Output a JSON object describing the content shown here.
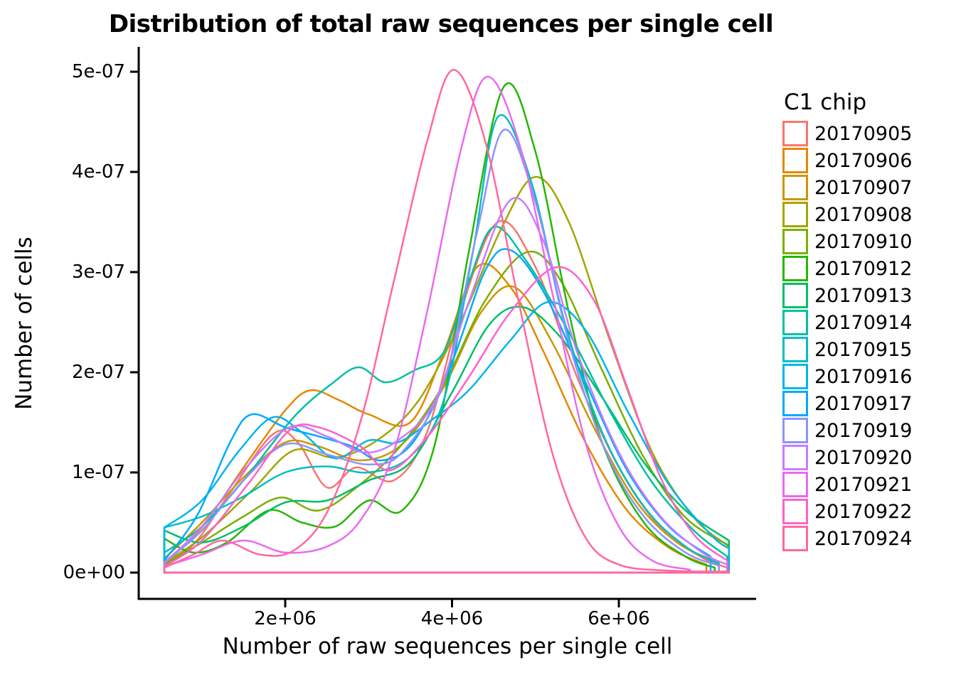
{
  "chart_data": {
    "type": "line",
    "subtype": "kernel-density",
    "title": "Distribution of total raw sequences per single cell",
    "xlabel": "Number of raw sequences per single cell",
    "ylabel": "Number of cells",
    "xlim": [
      250000,
      7650000
    ],
    "ylim": [
      0,
      5.2e-07
    ],
    "grid": false,
    "x_unit": 1000000,
    "y_unit": 1e-07,
    "x_ticks": [
      {
        "value": 2,
        "label": "2e+06"
      },
      {
        "value": 4,
        "label": "4e+06"
      },
      {
        "value": 6,
        "label": "6e+06"
      }
    ],
    "y_ticks": [
      {
        "value": 0,
        "label": "0e+00"
      },
      {
        "value": 1,
        "label": "1e-07"
      },
      {
        "value": 2,
        "label": "2e-07"
      },
      {
        "value": 3,
        "label": "3e-07"
      },
      {
        "value": 4,
        "label": "4e-07"
      },
      {
        "value": 5,
        "label": "5e-07"
      }
    ],
    "legend": {
      "title": "C1 chip",
      "position": "right"
    },
    "series": [
      {
        "name": "20170905",
        "color": "#F8766D",
        "points": [
          [
            0.55,
            0.1
          ],
          [
            0.9,
            0.28
          ],
          [
            1.3,
            0.75
          ],
          [
            1.85,
            1.38
          ],
          [
            2.15,
            1.3
          ],
          [
            2.5,
            0.85
          ],
          [
            2.85,
            1.05
          ],
          [
            3.3,
            0.92
          ],
          [
            3.7,
            1.4
          ],
          [
            4.1,
            2.6
          ],
          [
            4.55,
            3.5
          ],
          [
            5.0,
            3.05
          ],
          [
            5.5,
            1.95
          ],
          [
            6.0,
            1.05
          ],
          [
            6.5,
            0.45
          ],
          [
            7.0,
            0.15
          ],
          [
            7.3,
            0.05
          ]
        ]
      },
      {
        "name": "20170906",
        "color": "#E38900",
        "points": [
          [
            0.55,
            0.1
          ],
          [
            1.0,
            0.45
          ],
          [
            1.5,
            1.05
          ],
          [
            2.0,
            1.62
          ],
          [
            2.3,
            1.82
          ],
          [
            2.65,
            1.72
          ],
          [
            3.0,
            1.58
          ],
          [
            3.5,
            1.5
          ],
          [
            3.9,
            2.2
          ],
          [
            4.3,
            3.05
          ],
          [
            4.7,
            2.85
          ],
          [
            5.1,
            2.2
          ],
          [
            5.6,
            1.3
          ],
          [
            6.1,
            0.62
          ],
          [
            6.6,
            0.25
          ],
          [
            7.05,
            0.08
          ]
        ]
      },
      {
        "name": "20170907",
        "color": "#CD9600",
        "points": [
          [
            0.55,
            0.14
          ],
          [
            1.0,
            0.5
          ],
          [
            1.5,
            0.95
          ],
          [
            2.0,
            1.3
          ],
          [
            2.4,
            1.26
          ],
          [
            2.9,
            1.12
          ],
          [
            3.4,
            1.28
          ],
          [
            3.9,
            1.85
          ],
          [
            4.35,
            2.6
          ],
          [
            4.75,
            2.85
          ],
          [
            5.2,
            2.3
          ],
          [
            5.7,
            1.45
          ],
          [
            6.2,
            0.72
          ],
          [
            6.7,
            0.3
          ],
          [
            7.2,
            0.1
          ]
        ]
      },
      {
        "name": "20170908",
        "color": "#A3A500",
        "points": [
          [
            0.55,
            0.1
          ],
          [
            1.0,
            0.35
          ],
          [
            1.6,
            0.82
          ],
          [
            2.1,
            1.22
          ],
          [
            2.6,
            1.15
          ],
          [
            3.1,
            1.32
          ],
          [
            3.6,
            1.72
          ],
          [
            4.1,
            2.5
          ],
          [
            4.6,
            3.45
          ],
          [
            5.0,
            3.95
          ],
          [
            5.4,
            3.5
          ],
          [
            5.9,
            2.3
          ],
          [
            6.4,
            1.2
          ],
          [
            6.9,
            0.55
          ],
          [
            7.32,
            0.26
          ]
        ]
      },
      {
        "name": "20170910",
        "color": "#7CAE00",
        "points": [
          [
            0.55,
            0.08
          ],
          [
            1.0,
            0.3
          ],
          [
            1.5,
            0.56
          ],
          [
            1.95,
            0.75
          ],
          [
            2.4,
            0.62
          ],
          [
            2.9,
            0.88
          ],
          [
            3.4,
            1.28
          ],
          [
            3.9,
            1.88
          ],
          [
            4.4,
            2.72
          ],
          [
            4.9,
            3.2
          ],
          [
            5.3,
            2.92
          ],
          [
            5.8,
            2.02
          ],
          [
            6.3,
            1.15
          ],
          [
            6.8,
            0.55
          ],
          [
            7.32,
            0.27
          ]
        ]
      },
      {
        "name": "20170912",
        "color": "#24B700",
        "points": [
          [
            0.55,
            0.34
          ],
          [
            0.9,
            0.2
          ],
          [
            1.3,
            0.3
          ],
          [
            1.8,
            0.62
          ],
          [
            2.2,
            0.5
          ],
          [
            2.6,
            0.46
          ],
          [
            3.0,
            0.72
          ],
          [
            3.4,
            0.62
          ],
          [
            3.8,
            1.3
          ],
          [
            4.2,
            3.2
          ],
          [
            4.62,
            4.85
          ],
          [
            5.0,
            4.2
          ],
          [
            5.4,
            2.6
          ],
          [
            5.8,
            1.3
          ],
          [
            6.3,
            0.5
          ],
          [
            6.8,
            0.16
          ],
          [
            7.15,
            0.05
          ]
        ]
      },
      {
        "name": "20170913",
        "color": "#00BE67",
        "points": [
          [
            0.55,
            0.42
          ],
          [
            1.0,
            0.3
          ],
          [
            1.5,
            0.46
          ],
          [
            2.0,
            0.7
          ],
          [
            2.5,
            0.72
          ],
          [
            3.0,
            0.92
          ],
          [
            3.5,
            1.1
          ],
          [
            4.0,
            1.8
          ],
          [
            4.45,
            2.48
          ],
          [
            4.85,
            2.65
          ],
          [
            5.3,
            2.35
          ],
          [
            5.8,
            1.75
          ],
          [
            6.3,
            1.1
          ],
          [
            6.8,
            0.62
          ],
          [
            7.32,
            0.32
          ]
        ]
      },
      {
        "name": "20170914",
        "color": "#00C0A2",
        "points": [
          [
            0.55,
            0.2
          ],
          [
            1.0,
            0.46
          ],
          [
            1.5,
            0.92
          ],
          [
            2.1,
            1.55
          ],
          [
            2.55,
            1.88
          ],
          [
            2.88,
            2.05
          ],
          [
            3.2,
            1.9
          ],
          [
            3.55,
            2.02
          ],
          [
            3.9,
            2.2
          ],
          [
            4.2,
            2.9
          ],
          [
            4.5,
            3.45
          ],
          [
            4.9,
            3.1
          ],
          [
            5.4,
            2.4
          ],
          [
            5.9,
            1.6
          ],
          [
            6.4,
            0.9
          ],
          [
            6.9,
            0.42
          ],
          [
            7.3,
            0.16
          ]
        ]
      },
      {
        "name": "20170915",
        "color": "#00BFC4",
        "points": [
          [
            0.55,
            0.45
          ],
          [
            1.0,
            0.56
          ],
          [
            1.5,
            0.76
          ],
          [
            2.0,
            1.0
          ],
          [
            2.5,
            1.06
          ],
          [
            3.0,
            1.0
          ],
          [
            3.5,
            1.16
          ],
          [
            3.9,
            1.72
          ],
          [
            4.25,
            3.2
          ],
          [
            4.55,
            4.55
          ],
          [
            4.95,
            3.9
          ],
          [
            5.35,
            2.5
          ],
          [
            5.8,
            1.4
          ],
          [
            6.3,
            0.66
          ],
          [
            6.8,
            0.26
          ],
          [
            7.2,
            0.09
          ]
        ]
      },
      {
        "name": "20170916",
        "color": "#00B5EC",
        "points": [
          [
            0.55,
            0.45
          ],
          [
            1.0,
            0.72
          ],
          [
            1.45,
            1.22
          ],
          [
            1.85,
            1.55
          ],
          [
            2.2,
            1.4
          ],
          [
            2.6,
            1.14
          ],
          [
            3.0,
            1.32
          ],
          [
            3.35,
            1.3
          ],
          [
            3.75,
            1.52
          ],
          [
            4.2,
            1.82
          ],
          [
            4.7,
            2.32
          ],
          [
            5.15,
            2.7
          ],
          [
            5.6,
            2.42
          ],
          [
            6.1,
            1.62
          ],
          [
            6.6,
            0.88
          ],
          [
            7.1,
            0.38
          ],
          [
            7.32,
            0.24
          ]
        ]
      },
      {
        "name": "20170917",
        "color": "#00A9FF",
        "points": [
          [
            0.55,
            0.12
          ],
          [
            0.95,
            0.58
          ],
          [
            1.35,
            1.32
          ],
          [
            1.6,
            1.58
          ],
          [
            2.0,
            1.45
          ],
          [
            2.4,
            1.36
          ],
          [
            2.8,
            1.26
          ],
          [
            3.15,
            1.12
          ],
          [
            3.55,
            1.32
          ],
          [
            4.0,
            2.1
          ],
          [
            4.4,
            3.02
          ],
          [
            4.7,
            3.22
          ],
          [
            5.1,
            2.8
          ],
          [
            5.6,
            1.9
          ],
          [
            6.1,
            1.02
          ],
          [
            6.6,
            0.46
          ],
          [
            7.1,
            0.16
          ]
        ]
      },
      {
        "name": "20170919",
        "color": "#8C93FF",
        "points": [
          [
            0.55,
            0.1
          ],
          [
            1.0,
            0.42
          ],
          [
            1.5,
            0.92
          ],
          [
            2.0,
            1.28
          ],
          [
            2.5,
            1.18
          ],
          [
            3.0,
            1.08
          ],
          [
            3.4,
            1.2
          ],
          [
            3.9,
            1.9
          ],
          [
            4.3,
            3.4
          ],
          [
            4.62,
            4.42
          ],
          [
            5.0,
            3.7
          ],
          [
            5.4,
            2.3
          ],
          [
            5.85,
            1.2
          ],
          [
            6.3,
            0.56
          ],
          [
            6.8,
            0.2
          ],
          [
            7.2,
            0.07
          ]
        ]
      },
      {
        "name": "20170920",
        "color": "#C77CFF",
        "points": [
          [
            0.55,
            0.1
          ],
          [
            1.0,
            0.46
          ],
          [
            1.5,
            1.02
          ],
          [
            2.05,
            1.45
          ],
          [
            2.5,
            1.36
          ],
          [
            2.95,
            1.2
          ],
          [
            3.35,
            1.32
          ],
          [
            3.8,
            1.72
          ],
          [
            4.2,
            2.7
          ],
          [
            4.7,
            3.72
          ],
          [
            5.1,
            3.3
          ],
          [
            5.5,
            2.2
          ],
          [
            6.0,
            1.2
          ],
          [
            6.5,
            0.56
          ],
          [
            7.0,
            0.2
          ],
          [
            7.3,
            0.08
          ]
        ]
      },
      {
        "name": "20170921",
        "color": "#EA6AF1",
        "points": [
          [
            0.55,
            0.06
          ],
          [
            1.0,
            0.18
          ],
          [
            1.5,
            0.32
          ],
          [
            2.0,
            0.2
          ],
          [
            2.5,
            0.26
          ],
          [
            2.9,
            0.52
          ],
          [
            3.3,
            1.2
          ],
          [
            3.7,
            2.6
          ],
          [
            4.1,
            4.2
          ],
          [
            4.42,
            4.95
          ],
          [
            4.8,
            4.3
          ],
          [
            5.2,
            2.8
          ],
          [
            5.6,
            1.3
          ],
          [
            6.0,
            0.46
          ],
          [
            6.4,
            0.12
          ],
          [
            6.85,
            0.03
          ]
        ]
      },
      {
        "name": "20170922",
        "color": "#FF61CC",
        "points": [
          [
            0.55,
            0.06
          ],
          [
            1.0,
            0.32
          ],
          [
            1.55,
            0.88
          ],
          [
            2.05,
            1.42
          ],
          [
            2.4,
            1.45
          ],
          [
            2.9,
            1.26
          ],
          [
            3.25,
            1.02
          ],
          [
            3.7,
            1.35
          ],
          [
            4.2,
            1.95
          ],
          [
            4.7,
            2.6
          ],
          [
            5.25,
            3.05
          ],
          [
            5.7,
            2.72
          ],
          [
            6.1,
            1.85
          ],
          [
            6.5,
            0.95
          ],
          [
            6.9,
            0.38
          ],
          [
            7.3,
            0.12
          ]
        ]
      },
      {
        "name": "20170924",
        "color": "#FF689E",
        "points": [
          [
            0.55,
            0.05
          ],
          [
            0.9,
            0.18
          ],
          [
            1.25,
            0.32
          ],
          [
            1.7,
            0.18
          ],
          [
            2.1,
            0.22
          ],
          [
            2.5,
            0.6
          ],
          [
            2.9,
            1.5
          ],
          [
            3.3,
            2.9
          ],
          [
            3.7,
            4.3
          ],
          [
            4.02,
            5.02
          ],
          [
            4.4,
            4.3
          ],
          [
            4.8,
            2.7
          ],
          [
            5.2,
            1.2
          ],
          [
            5.6,
            0.35
          ],
          [
            6.0,
            0.08
          ],
          [
            6.6,
            0.02
          ],
          [
            7.32,
            0.01
          ]
        ]
      }
    ]
  }
}
